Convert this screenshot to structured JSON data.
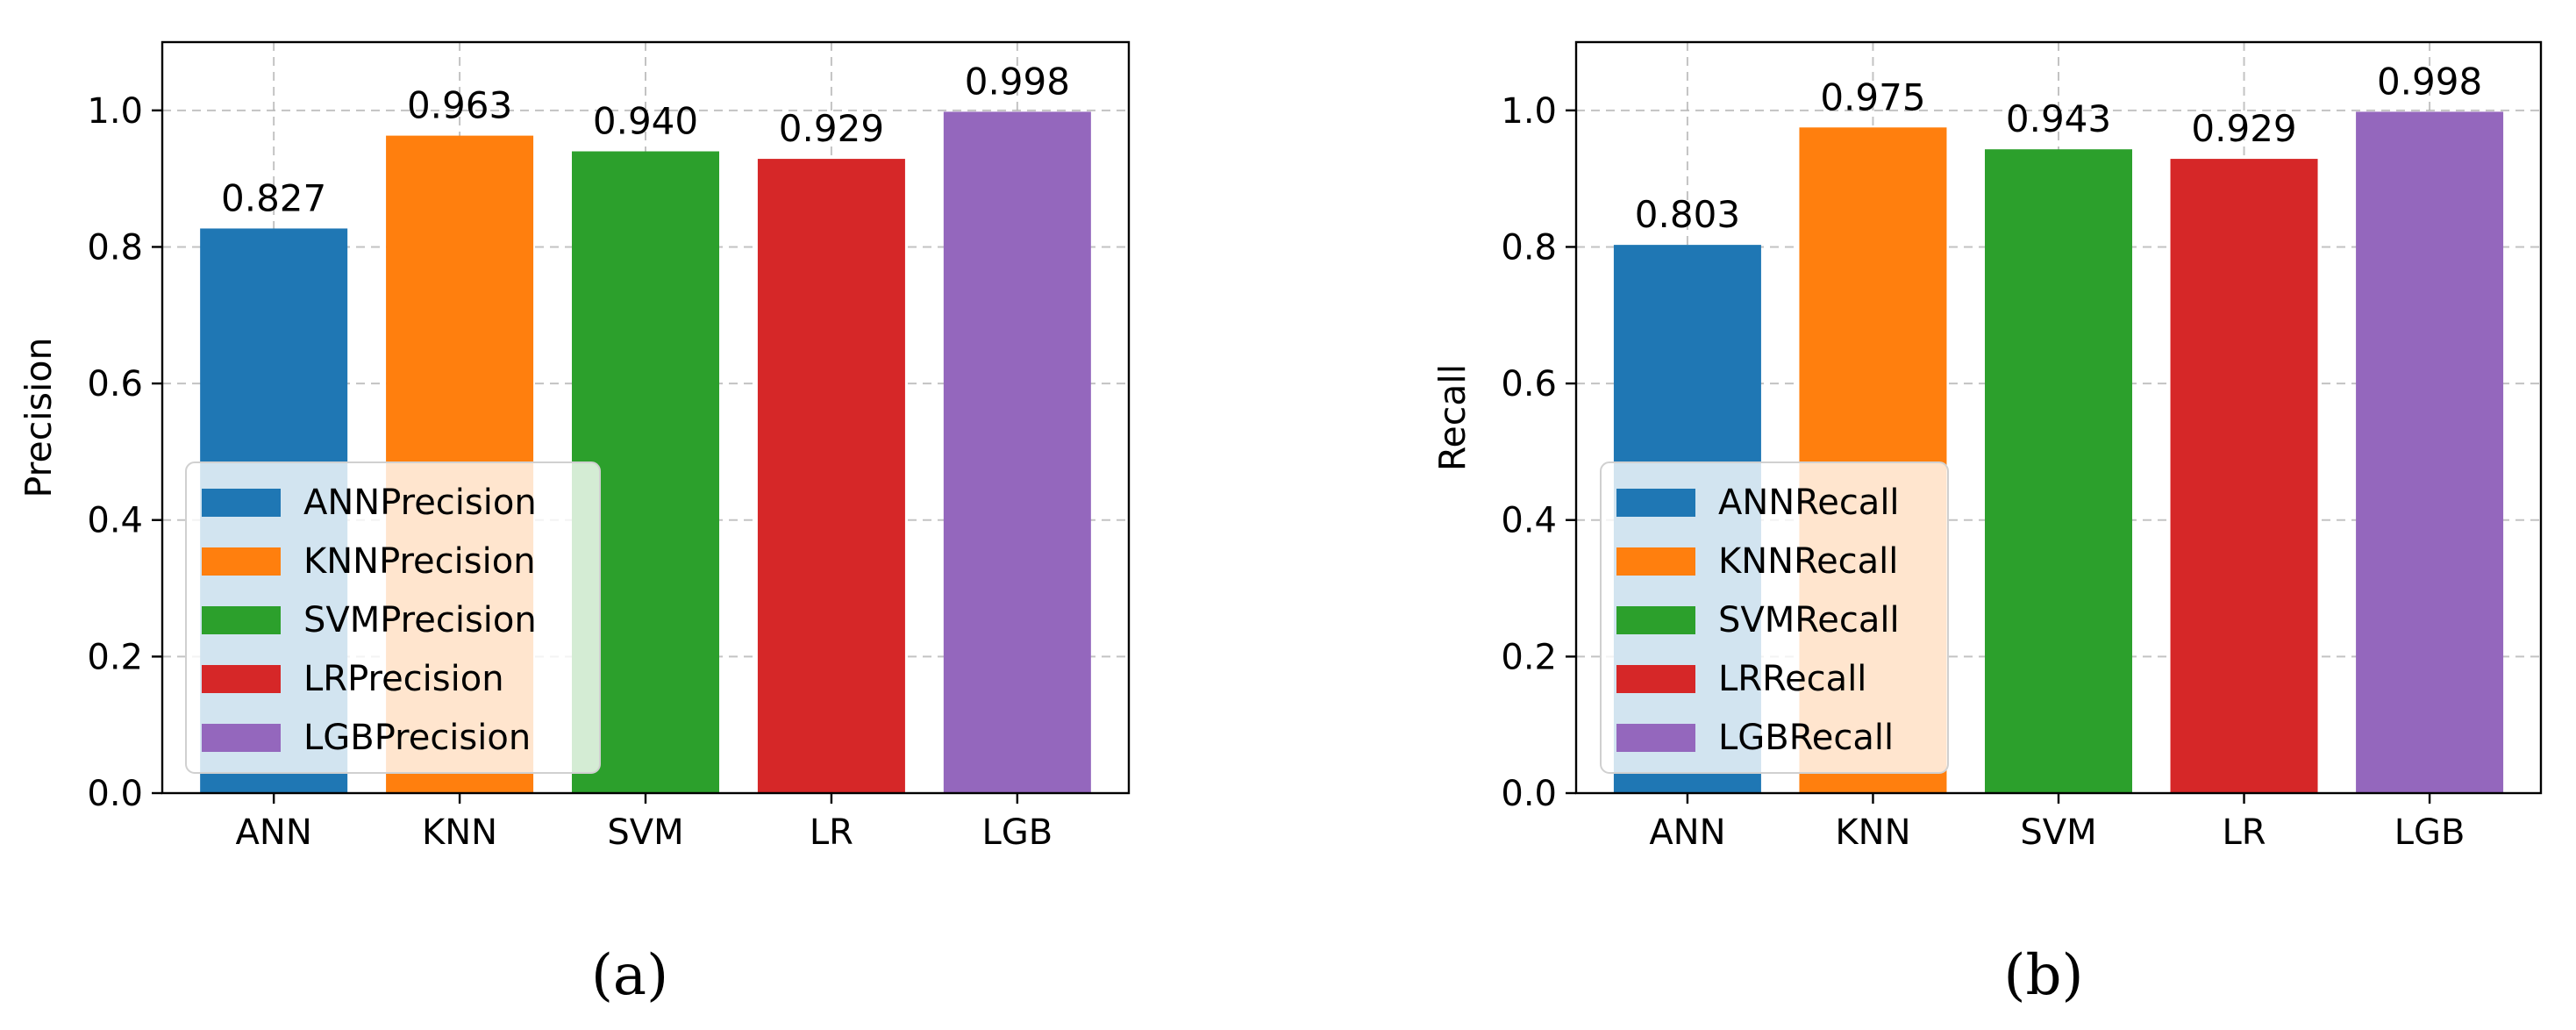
{
  "chart_data": [
    {
      "type": "bar",
      "panel": "a",
      "caption": "(a)",
      "categories": [
        "ANN",
        "KNN",
        "SVM",
        "LR",
        "LGB"
      ],
      "values": [
        0.827,
        0.963,
        0.94,
        0.929,
        0.998
      ],
      "value_labels": [
        "0.827",
        "0.963",
        "0.940",
        "0.929",
        "0.998"
      ],
      "colors": [
        "#1f77b4",
        "#ff7f0e",
        "#2ca02c",
        "#d62728",
        "#9467bd"
      ],
      "legend": [
        "ANNPrecision",
        "KNNPrecision",
        "SVMPrecision",
        "LRPrecision",
        "LGBPrecision"
      ],
      "legend_location": "lower-left",
      "title": "",
      "xlabel": "",
      "ylabel": "Precision",
      "ylim": [
        0,
        1.1
      ],
      "yticks": [
        0.0,
        0.2,
        0.4,
        0.6,
        0.8,
        1.0
      ],
      "ytick_labels": [
        "0.0",
        "0.2",
        "0.4",
        "0.6",
        "0.8",
        "1.0"
      ],
      "grid": true
    },
    {
      "type": "bar",
      "panel": "b",
      "caption": "(b)",
      "categories": [
        "ANN",
        "KNN",
        "SVM",
        "LR",
        "LGB"
      ],
      "values": [
        0.803,
        0.975,
        0.943,
        0.929,
        0.998
      ],
      "value_labels": [
        "0.803",
        "0.975",
        "0.943",
        "0.929",
        "0.998"
      ],
      "colors": [
        "#1f77b4",
        "#ff7f0e",
        "#2ca02c",
        "#d62728",
        "#9467bd"
      ],
      "legend": [
        "ANNRecall",
        "KNNRecall",
        "SVMRecall",
        "LRRecall",
        "LGBRecall"
      ],
      "legend_location": "lower-left",
      "title": "",
      "xlabel": "",
      "ylabel": "Recall",
      "ylim": [
        0,
        1.1
      ],
      "yticks": [
        0.0,
        0.2,
        0.4,
        0.6,
        0.8,
        1.0
      ],
      "ytick_labels": [
        "0.0",
        "0.2",
        "0.4",
        "0.6",
        "0.8",
        "1.0"
      ],
      "grid": true
    }
  ]
}
